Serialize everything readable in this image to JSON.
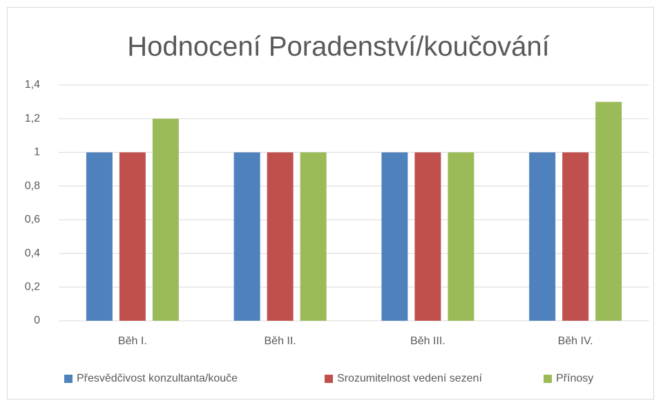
{
  "chart_data": {
    "type": "bar",
    "title": "Hodnocení Poradenství/koučování",
    "categories": [
      "Běh I.",
      "Běh II.",
      "Běh III.",
      "Běh IV."
    ],
    "series": [
      {
        "name": "Přesvědčivost konzultanta/kouče",
        "color": "#4f81bd",
        "values": [
          1,
          1,
          1,
          1
        ]
      },
      {
        "name": "Srozumitelnost vedení sezení",
        "color": "#c0504d",
        "values": [
          1,
          1,
          1,
          1
        ]
      },
      {
        "name": "Přínosy",
        "color": "#9bbb59",
        "values": [
          1.2,
          1,
          1,
          1.3
        ]
      }
    ],
    "ylim": [
      0,
      1.4
    ],
    "yticks": [
      0,
      {
        "value": 0.2,
        "label": "0,2"
      },
      {
        "value": 0.4,
        "label": "0,4"
      },
      {
        "value": 0.6,
        "label": "0,6"
      },
      {
        "value": 0.8,
        "label": "0,8"
      },
      1,
      {
        "value": 1.2,
        "label": "1,2"
      },
      {
        "value": 1.4,
        "label": "1,4"
      }
    ],
    "grid": true,
    "legend": "bottom"
  }
}
